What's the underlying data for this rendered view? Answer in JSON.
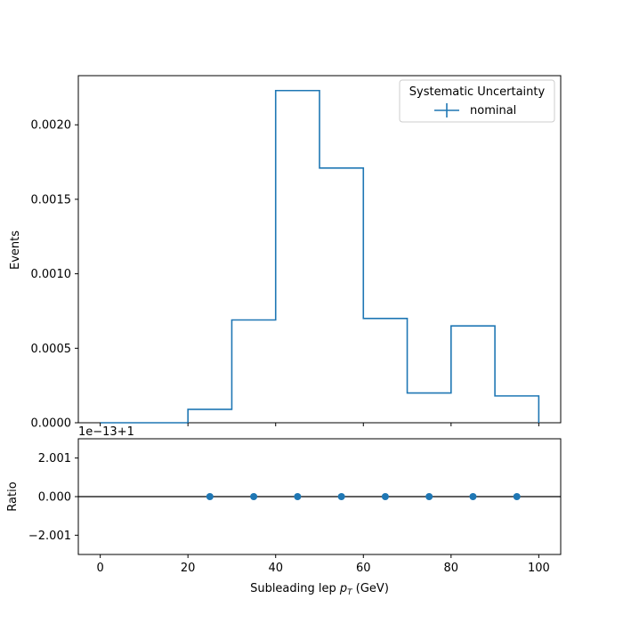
{
  "chart_data": [
    {
      "type": "histogram-step",
      "panel": "main",
      "ylabel": "Events",
      "xlim": [
        -5,
        105
      ],
      "ylim": [
        0,
        0.00233
      ],
      "bin_edges": [
        0,
        10,
        20,
        30,
        40,
        50,
        60,
        70,
        80,
        90,
        100
      ],
      "series": [
        {
          "name": "nominal",
          "color": "#1f77b4",
          "values": [
            0,
            0,
            9e-05,
            0.00069,
            0.00223,
            0.00171,
            0.0007,
            0.0002,
            0.00065,
            0.00018
          ]
        }
      ],
      "yticks": [
        0,
        0.0005,
        0.001,
        0.0015,
        0.002
      ],
      "ytick_labels": [
        "0.0000",
        "0.0005",
        "0.0010",
        "0.0015",
        "0.0020"
      ],
      "legend": {
        "title": "Systematic Uncertainty",
        "placement": "top-right",
        "entries": [
          "nominal"
        ]
      }
    },
    {
      "type": "scatter",
      "panel": "ratio",
      "ylabel": "Ratio",
      "xlabel": "Subleading lep p_T (GeV)",
      "offset_label": "1e−13+1",
      "ylim": [
        -3,
        3
      ],
      "reference_line": 0,
      "points": {
        "x": [
          25,
          35,
          45,
          55,
          65,
          75,
          85,
          95
        ],
        "y": [
          0,
          0,
          0,
          0,
          0,
          0,
          0,
          0
        ]
      },
      "color": "#1f77b4",
      "yticks": [
        2.001,
        0,
        -2.001
      ],
      "ytick_labels": [
        "2.001",
        "0.000",
        "−2.001"
      ],
      "xticks": [
        0,
        20,
        40,
        60,
        80,
        100
      ],
      "xtick_labels": [
        "0",
        "20",
        "40",
        "60",
        "80",
        "100"
      ]
    }
  ],
  "labels": {
    "xlabel_main": "Subleading lep ",
    "xlabel_var": "p",
    "xlabel_sub": "T",
    "xlabel_unit": " (GeV)"
  }
}
